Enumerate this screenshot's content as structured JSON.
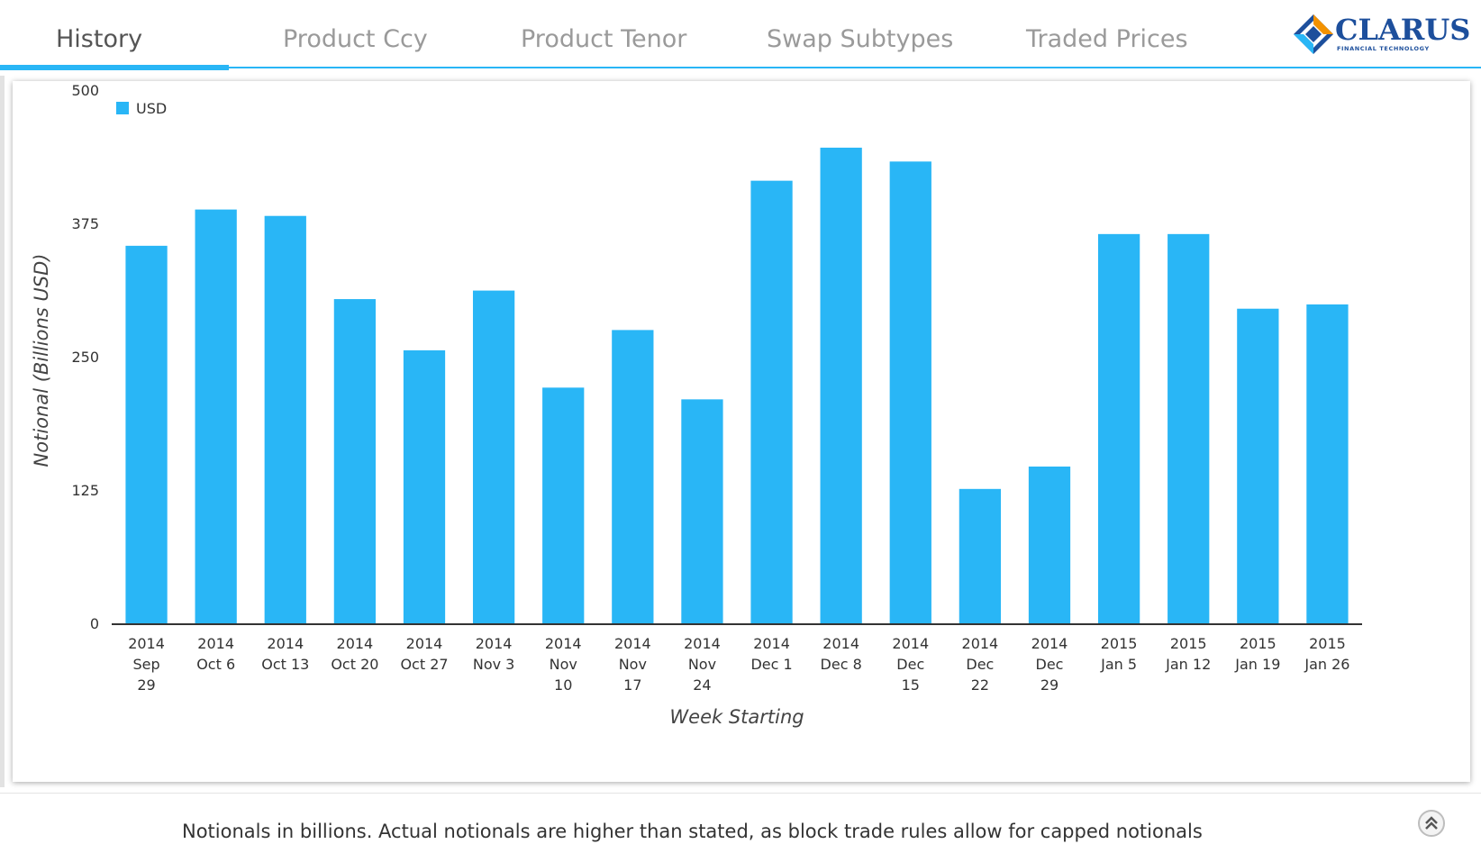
{
  "tabs": [
    {
      "label": "History",
      "active": true
    },
    {
      "label": "Product Ccy",
      "active": false
    },
    {
      "label": "Product Tenor",
      "active": false
    },
    {
      "label": "Swap Subtypes",
      "active": false
    },
    {
      "label": "Traded Prices",
      "active": false
    }
  ],
  "logo": {
    "name": "CLARUS",
    "tagline": "FINANCIAL TECHNOLOGY"
  },
  "colors": {
    "accent": "#29b6f6",
    "bar": "#29b6f6",
    "logo": "#1d4f9c"
  },
  "chart_data": {
    "type": "bar",
    "xlabel": "Week Starting",
    "ylabel": "Notional (Billions USD)",
    "ylim": [
      0,
      500
    ],
    "yticks": [
      0,
      125,
      250,
      375,
      500
    ],
    "grid": false,
    "legend_position": "top-left",
    "categories": [
      [
        "2014",
        "Sep",
        "29"
      ],
      [
        "2014",
        "Oct 6"
      ],
      [
        "2014",
        "Oct 13"
      ],
      [
        "2014",
        "Oct 20"
      ],
      [
        "2014",
        "Oct 27"
      ],
      [
        "2014",
        "Nov 3"
      ],
      [
        "2014",
        "Nov",
        "10"
      ],
      [
        "2014",
        "Nov",
        "17"
      ],
      [
        "2014",
        "Nov",
        "24"
      ],
      [
        "2014",
        "Dec 1"
      ],
      [
        "2014",
        "Dec 8"
      ],
      [
        "2014",
        "Dec",
        "15"
      ],
      [
        "2014",
        "Dec",
        "22"
      ],
      [
        "2014",
        "Dec",
        "29"
      ],
      [
        "2015",
        "Jan 5"
      ],
      [
        "2015",
        "Jan 12"
      ],
      [
        "2015",
        "Jan 19"
      ],
      [
        "2015",
        "Jan 26"
      ]
    ],
    "series": [
      {
        "name": "USD",
        "values": [
          354,
          388,
          382,
          304,
          256,
          312,
          221,
          275,
          210,
          415,
          446,
          433,
          126,
          147,
          365,
          365,
          295,
          299
        ]
      }
    ]
  },
  "footer": {
    "note": "Notionals in billions. Actual notionals are higher than stated, as block trade rules allow for capped notionals"
  }
}
